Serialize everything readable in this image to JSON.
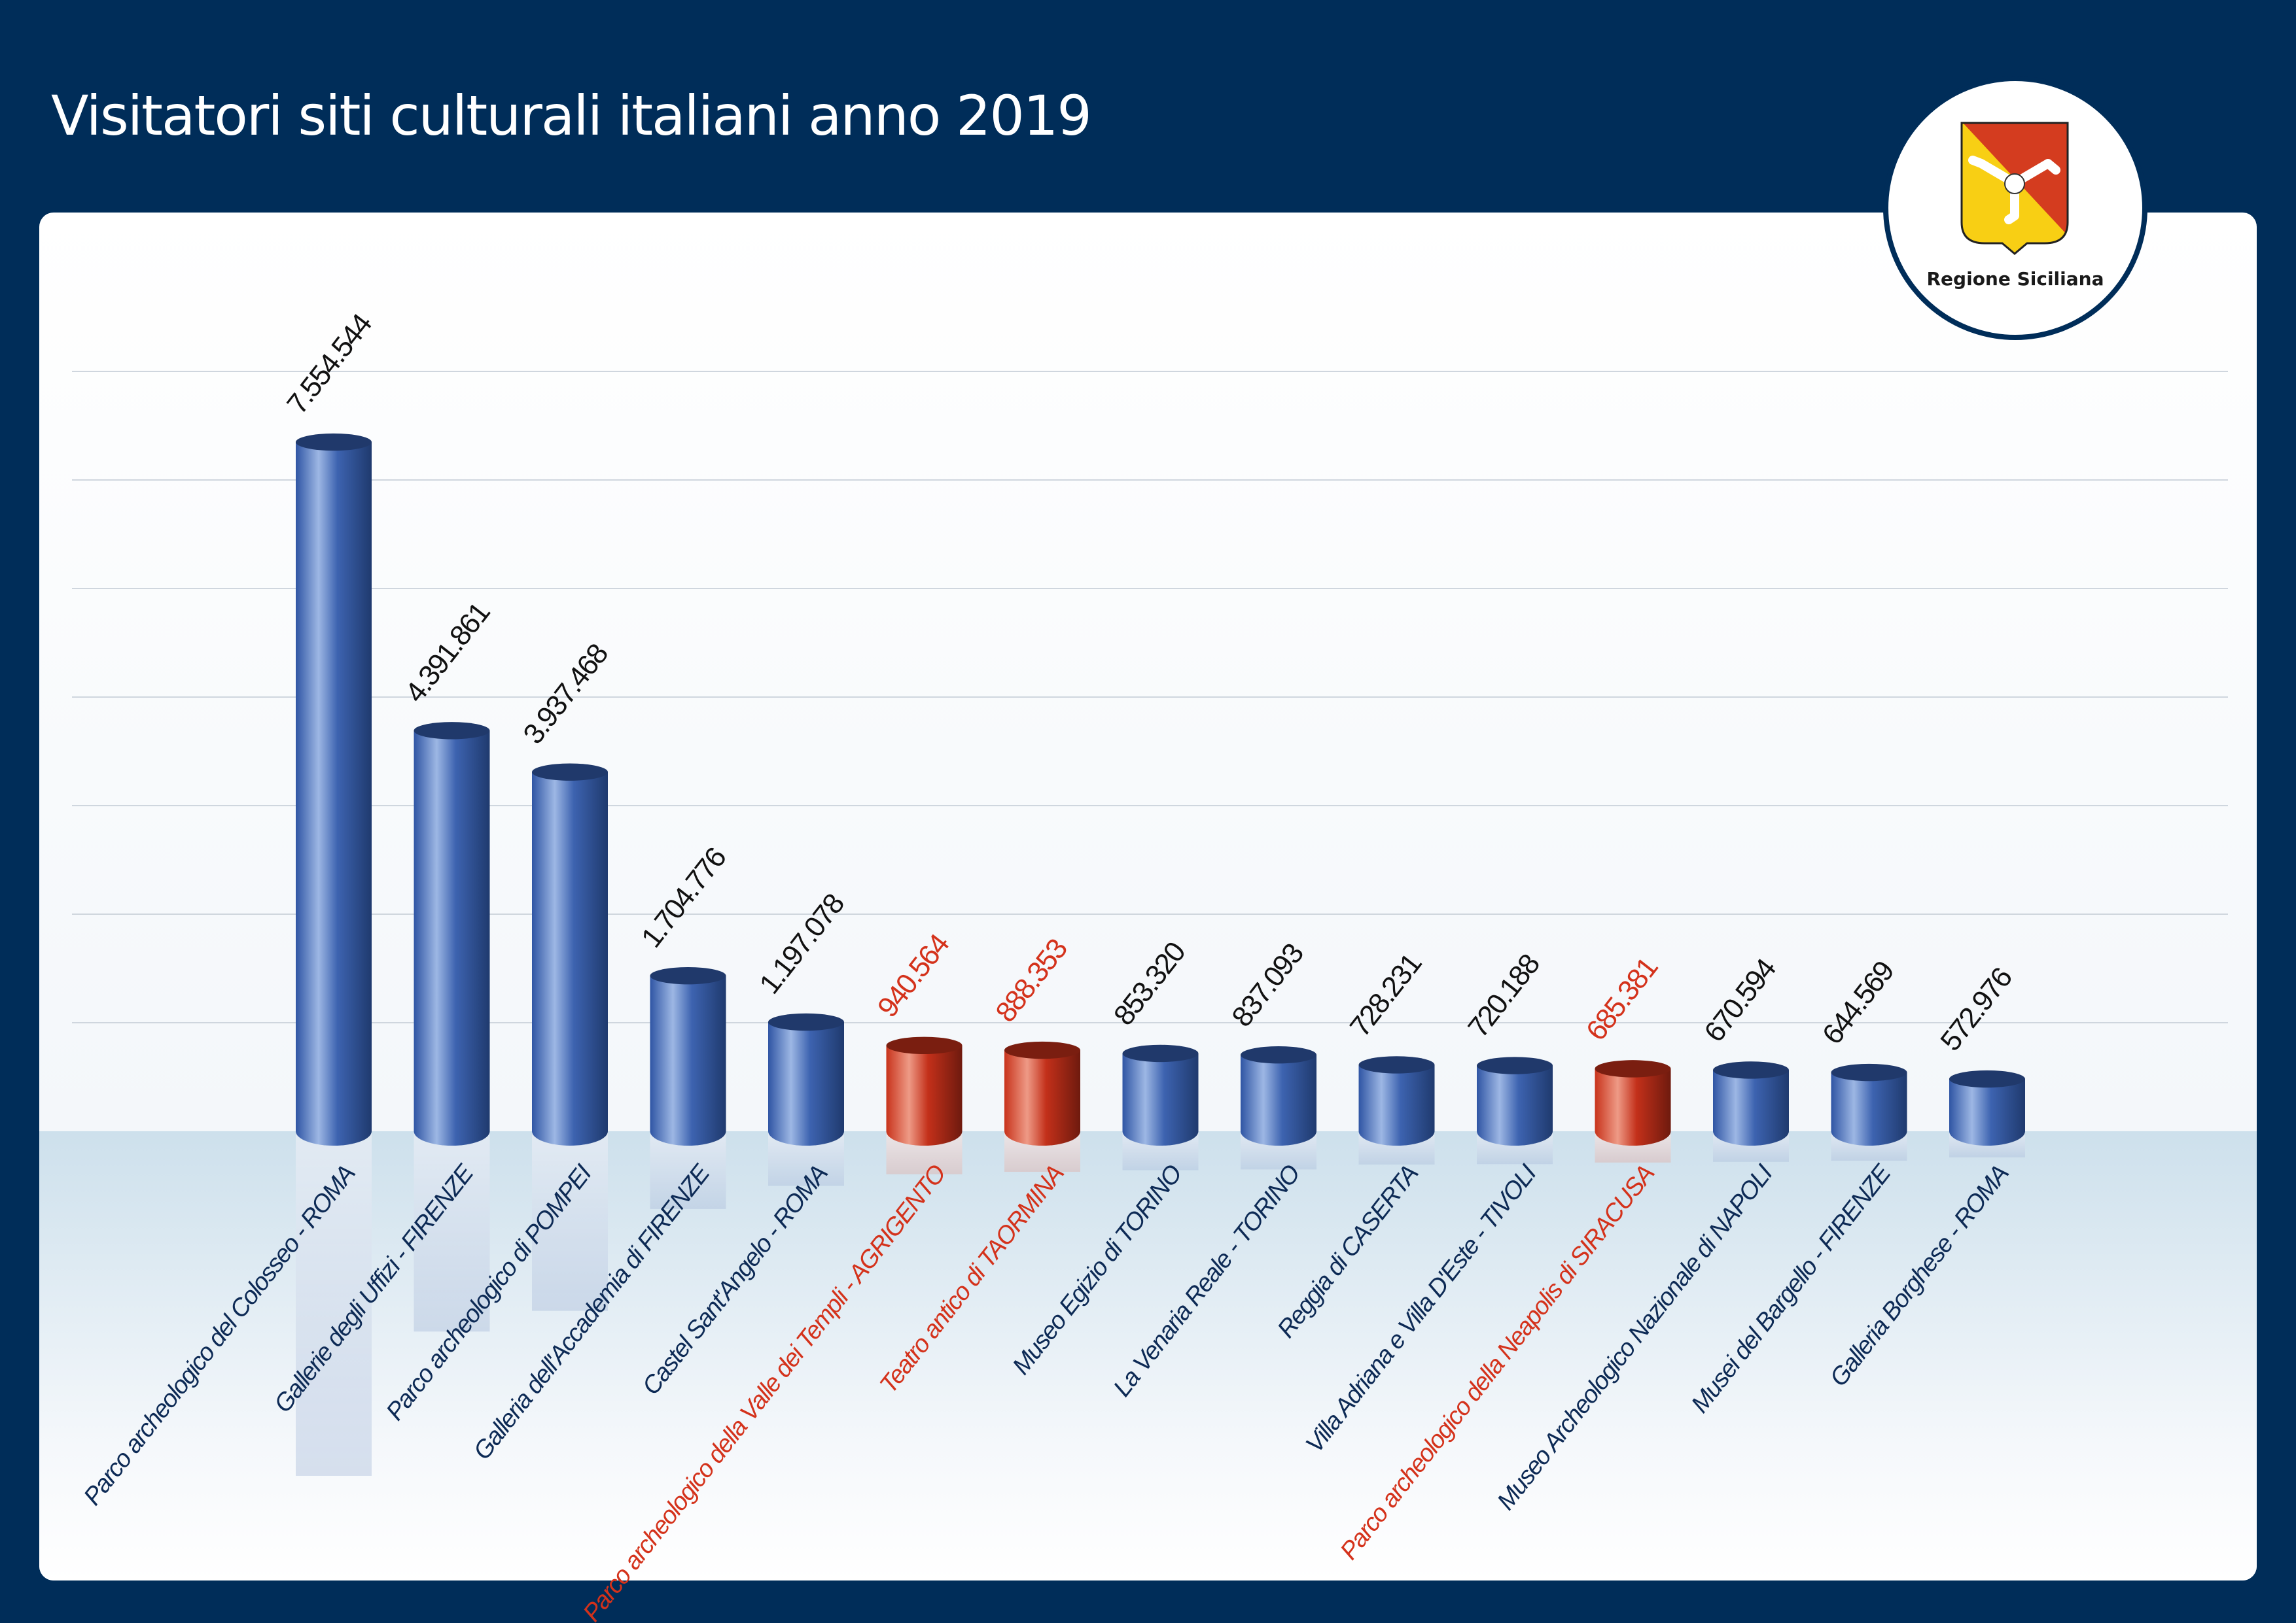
{
  "header": {
    "title": "Visitatori siti culturali italiani anno 2019"
  },
  "logo": {
    "text": "Regione Siciliana",
    "icon": "trinacria-shield-icon"
  },
  "colors": {
    "background": "#002d59",
    "bar_default": "#3a5ea8",
    "bar_highlight": "#c5311a",
    "label_default": "#0d2a55",
    "label_highlight": "#d4321b",
    "value_default": "#111111"
  },
  "chart_data": {
    "type": "bar",
    "style": "3d-cylinder",
    "title": "Visitatori siti culturali italiani anno 2019",
    "xlabel": "",
    "ylabel": "",
    "ylim": [
      0,
      8100000
    ],
    "grid": true,
    "categories": [
      "Parco archeologico del Colosseo - ROMA",
      "Gallerie degli Uffizi - FIRENZE",
      "Parco archeologico di POMPEI",
      "Galleria dell'Accademia di FIRENZE",
      "Castel Sant'Angelo - ROMA",
      "Parco archeologico della Valle dei Templi - AGRIGENTO",
      "Teatro antico di TAORMINA",
      "Museo Egizio di TORINO",
      "La Venaria Reale - TORINO",
      "Reggia di CASERTA",
      "Villa Adriana e Villa D'Este - TIVOLI",
      "Parco archeologico della Neapolis di SIRACUSA",
      "Museo Archeologico Nazionale di NAPOLI",
      "Musei del Bargello - FIRENZE",
      "Galleria Borghese - ROMA"
    ],
    "values": [
      7554544,
      4391861,
      3937468,
      1704776,
      1197078,
      940564,
      888353,
      853320,
      837093,
      728231,
      720188,
      685381,
      670594,
      644569,
      572976
    ],
    "value_labels": [
      "7.554.544",
      "4.391.861",
      "3.937.468",
      "1.704.776",
      "1.197.078",
      "940.564",
      "888.353",
      "853.320",
      "837.093",
      "728.231",
      "720.188",
      "685.381",
      "670.594",
      "644.569",
      "572.976"
    ],
    "highlighted": [
      false,
      false,
      false,
      false,
      false,
      true,
      true,
      false,
      false,
      false,
      false,
      true,
      false,
      false,
      false
    ]
  }
}
